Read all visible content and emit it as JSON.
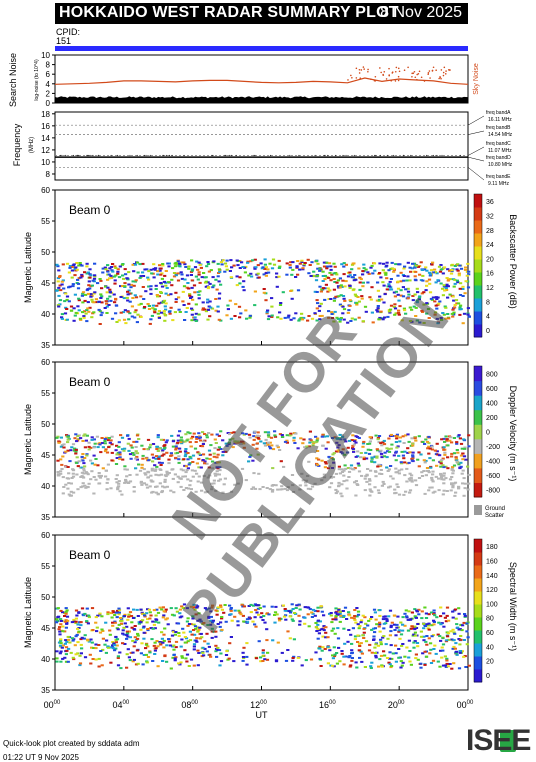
{
  "header": {
    "title": "HOKKAIDO WEST RADAR SUMMARY PLOT",
    "date": "8 Nov 2025"
  },
  "cpid": {
    "label": "CPID:",
    "value": "151"
  },
  "noise_panel": {
    "ylabel": "Search Noise",
    "ylabel_sub": "log-noise (to 10^4)",
    "right_label": "Sky Noise",
    "yticks": [
      "10",
      "8",
      "6",
      "4",
      "2",
      "0"
    ]
  },
  "freq_panel": {
    "ylabel": "Frequency",
    "unit": "(MHz)",
    "yticks": [
      "18",
      "16",
      "14",
      "12",
      "10",
      "8"
    ],
    "bands": [
      {
        "label": "freq bandA",
        "value": "16.11 MHz"
      },
      {
        "label": "freq bandB",
        "value": "14.54 MHz"
      },
      {
        "label": "freq bandC",
        "value": "11.07 MHz"
      },
      {
        "label": "freq bandD",
        "value": "10.80 MHz"
      },
      {
        "label": "freq bandE",
        "value": "9.11 MHz"
      }
    ]
  },
  "panels": [
    {
      "beam": "Beam  0",
      "ylabel": "Magnetic Latitude",
      "cbar_label": "Backscatter Power (dB)",
      "cbar_ticks": [
        "36",
        "32",
        "28",
        "24",
        "20",
        "16",
        "12",
        "8",
        "4",
        "0"
      ]
    },
    {
      "beam": "Beam  0",
      "ylabel": "Magnetic Latitude",
      "cbar_label": "Doppler Velocity (m s⁻¹)",
      "cbar_ticks": [
        "800",
        "600",
        "400",
        "200",
        "0",
        "-200",
        "-400",
        "-600",
        "-800"
      ],
      "ground_label": "Ground",
      "ground_label2": "Scatter"
    },
    {
      "beam": "Beam  0",
      "ylabel": "Magnetic Latitude",
      "cbar_label": "Spectral Width (m s⁻¹)",
      "cbar_ticks": [
        "180",
        "160",
        "140",
        "120",
        "100",
        "80",
        "60",
        "40",
        "20",
        "0"
      ]
    }
  ],
  "lat_ticks": [
    "60",
    "55",
    "50",
    "45",
    "40",
    "35"
  ],
  "x_ticks": [
    "00",
    "04",
    "08",
    "12",
    "16",
    "20",
    "00"
  ],
  "x_tick_sup": "00",
  "xlabel": "UT",
  "credits": {
    "line1": "Quick-look plot created by sddata adm",
    "line2": "01:22 UT  9 Nov 2025"
  },
  "logo": "ISEE",
  "watermark": "NOT FOR PUBLICATION",
  "chart_data": [
    {
      "type": "area",
      "title": "Search Noise",
      "x_range_hours": [
        0,
        24
      ],
      "ylim": [
        0,
        10
      ],
      "series": [
        {
          "name": "Sky Noise",
          "values_approx": [
            3.9,
            4.0,
            4.1,
            4.3,
            4.6,
            4.6,
            4.5,
            4.4,
            4.6,
            4.7,
            4.7,
            4.5,
            4.3,
            4.2,
            4.3,
            4.5,
            4.4,
            4.2,
            5.2,
            4.5,
            5.0,
            4.8,
            4.6,
            4.1,
            3.9
          ]
        }
      ]
    },
    {
      "type": "scatter",
      "title": "Frequency",
      "ylim": [
        8,
        18
      ],
      "series": [
        {
          "name": "freq",
          "values_approx": [
            10.8,
            10.8,
            10.8,
            10.8,
            10.8,
            10.8,
            10.8
          ]
        }
      ]
    },
    {
      "type": "heatmap",
      "title": "Backscatter Power (dB)",
      "ylim": [
        35,
        60
      ],
      "xlim_hours": [
        0,
        24
      ],
      "zlim": [
        0,
        38
      ]
    },
    {
      "type": "heatmap",
      "title": "Doppler Velocity (m s-1)",
      "ylim": [
        35,
        60
      ],
      "xlim_hours": [
        0,
        24
      ],
      "zlim": [
        -900,
        900
      ]
    },
    {
      "type": "heatmap",
      "title": "Spectral Width (m s-1)",
      "ylim": [
        35,
        60
      ],
      "xlim_hours": [
        0,
        24
      ],
      "zlim": [
        0,
        190
      ]
    }
  ]
}
